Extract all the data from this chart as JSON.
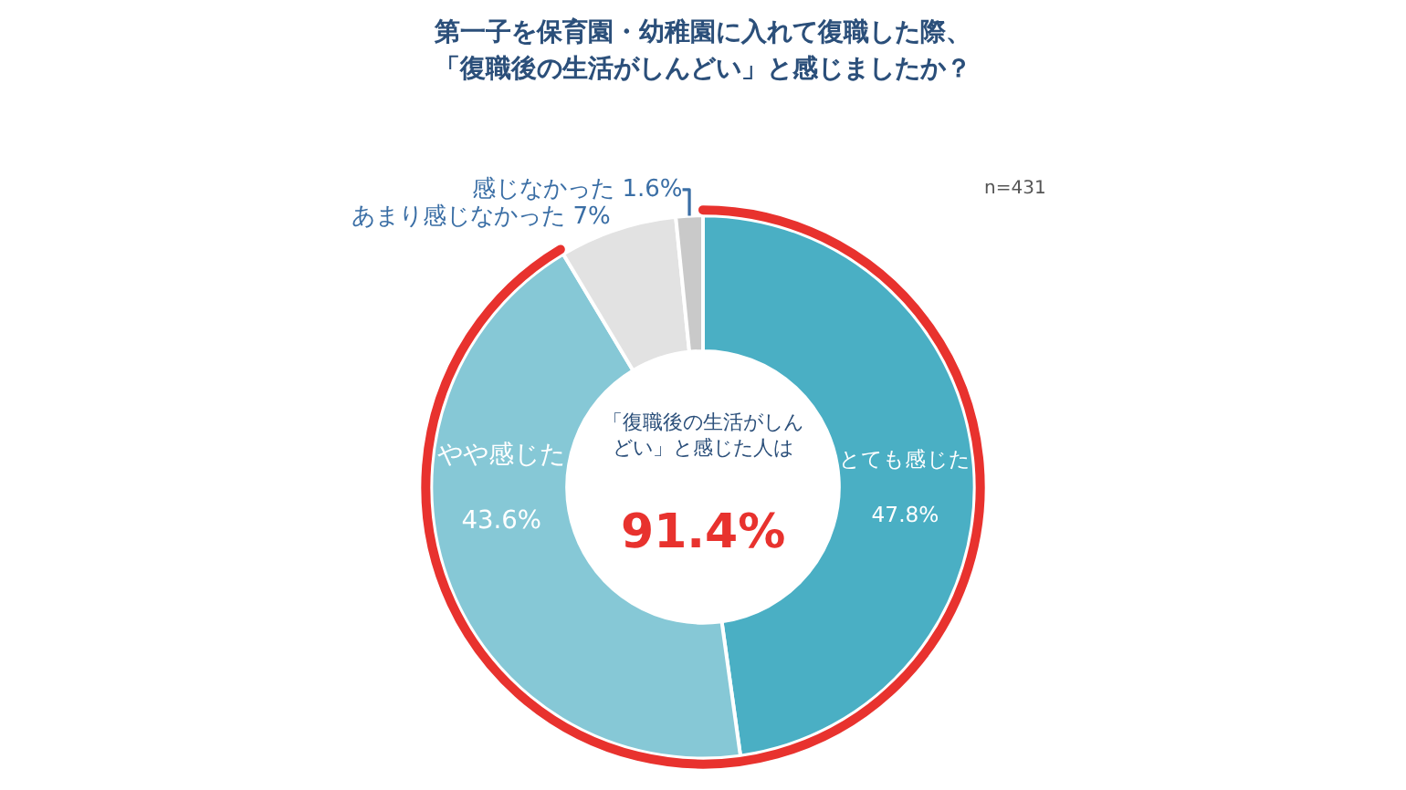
{
  "chart_data": {
    "type": "donut",
    "title": "第一子を保育園・幼稚園に入れて復職した際、「復職後の生活がしんどい」と感じましたか？",
    "categories": [
      "とても感じた",
      "やや感じた",
      "あまり感じなかった",
      "感じなかった"
    ],
    "values": [
      47.8,
      43.6,
      7,
      1.6
    ],
    "value_labels": [
      "47.8%",
      "43.6%",
      "7%",
      "1.6%"
    ],
    "colors": [
      "#4aafc4",
      "#86c8d6",
      "#e2e2e2",
      "#c9c9c9"
    ],
    "legend": false,
    "annotations": [
      "n=431",
      "「復職後の生活がしんどい」と感じた人は",
      "91.4%"
    ]
  }
}
